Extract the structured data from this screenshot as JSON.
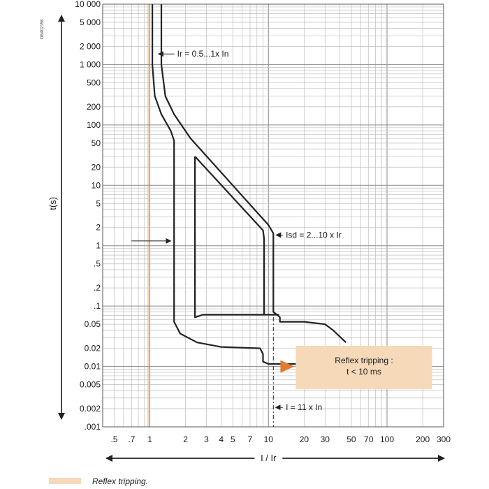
{
  "chart_data": {
    "type": "line",
    "title": "",
    "doc_code": "DB402158",
    "xlabel": "I / Ir",
    "ylabel": "t(s)",
    "x_scale": "log",
    "y_scale": "log",
    "xlim": [
      0.4,
      300
    ],
    "ylim": [
      0.001,
      10000
    ],
    "grid": true,
    "x_ticks": [
      {
        "v": 0.5,
        "label": ".5"
      },
      {
        "v": 0.7,
        "label": ".7"
      },
      {
        "v": 1,
        "label": "1"
      },
      {
        "v": 2,
        "label": "2"
      },
      {
        "v": 3,
        "label": "3"
      },
      {
        "v": 4,
        "label": "4"
      },
      {
        "v": 5,
        "label": "5"
      },
      {
        "v": 7,
        "label": "7"
      },
      {
        "v": 10,
        "label": "10"
      },
      {
        "v": 20,
        "label": "20"
      },
      {
        "v": 30,
        "label": "30"
      },
      {
        "v": 50,
        "label": "50"
      },
      {
        "v": 70,
        "label": "70"
      },
      {
        "v": 100,
        "label": "100"
      },
      {
        "v": 200,
        "label": "200"
      },
      {
        "v": 300,
        "label": "300"
      }
    ],
    "y_ticks": [
      {
        "v": 10000,
        "label": "10 000"
      },
      {
        "v": 5000,
        "label": "5 000"
      },
      {
        "v": 2000,
        "label": "2 000"
      },
      {
        "v": 1000,
        "label": "1 000"
      },
      {
        "v": 500,
        "label": "500"
      },
      {
        "v": 200,
        "label": "200"
      },
      {
        "v": 100,
        "label": "100"
      },
      {
        "v": 50,
        "label": "50"
      },
      {
        "v": 20,
        "label": "20"
      },
      {
        "v": 10,
        "label": "10"
      },
      {
        "v": 5,
        "label": "5"
      },
      {
        "v": 2,
        "label": "2"
      },
      {
        "v": 1,
        "label": "1"
      },
      {
        "v": 0.5,
        "label": ".5"
      },
      {
        "v": 0.2,
        "label": ".2"
      },
      {
        "v": 0.1,
        "label": ".1"
      },
      {
        "v": 0.05,
        "label": "0.05"
      },
      {
        "v": 0.02,
        "label": "0.02"
      },
      {
        "v": 0.01,
        "label": "0.01"
      },
      {
        "v": 0.005,
        "label": "0.005"
      },
      {
        "v": 0.002,
        "label": "0.002"
      },
      {
        "v": 0.001,
        "label": ".001"
      }
    ],
    "series": [
      {
        "color": "#222222",
        "points": [
          [
            1.05,
            10000
          ],
          [
            1.05,
            1000
          ],
          [
            1.1,
            300
          ],
          [
            1.25,
            150
          ],
          [
            1.5,
            80
          ],
          [
            1.6,
            55
          ],
          [
            1.6,
            0.055
          ],
          [
            1.8,
            0.035
          ],
          [
            2.5,
            0.025
          ],
          [
            4,
            0.021
          ],
          [
            8.5,
            0.02
          ],
          [
            9,
            0.016
          ],
          [
            9,
            0.012
          ],
          [
            10,
            0.011
          ],
          [
            30,
            0.011
          ]
        ]
      },
      {
        "color": "#222222",
        "points": [
          [
            1.25,
            10000
          ],
          [
            1.25,
            1000
          ],
          [
            1.35,
            300
          ],
          [
            1.6,
            150
          ],
          [
            2.2,
            60
          ],
          [
            5,
            10
          ],
          [
            10,
            2.2
          ],
          [
            11,
            1.6
          ],
          [
            11,
            0.08
          ],
          [
            12,
            0.07
          ],
          [
            12.5,
            0.065
          ],
          [
            12.5,
            0.055
          ],
          [
            20,
            0.055
          ],
          [
            30,
            0.05
          ],
          [
            35,
            0.04
          ],
          [
            45,
            0.025
          ]
        ]
      },
      {
        "color": "#222222",
        "points": [
          [
            2.4,
            30
          ],
          [
            2.4,
            0.065
          ],
          [
            2.8,
            0.072
          ],
          [
            12.3,
            0.072
          ]
        ]
      },
      {
        "color": "#222222",
        "points": [
          [
            2.4,
            30
          ],
          [
            9,
            1.8
          ],
          [
            9.2,
            1.3
          ],
          [
            9.2,
            0.072
          ]
        ]
      }
    ],
    "highlight_band": {
      "x": [
        0.95,
        1.0
      ],
      "color": "#f5d9b8",
      "label": "Reflex tripping."
    },
    "dash_line": {
      "x": 11,
      "y_from": 0.2,
      "y_to": 0.001
    },
    "annotations": [
      {
        "text": "Ir = 0.5...1x In",
        "x": 1.7,
        "y": 1500,
        "arrow_to_x": 1.15
      },
      {
        "text": "Isd = 2...10 x Ir",
        "x": 14,
        "y": 1.5,
        "arrow_to_x": 11.3
      },
      {
        "text": "I = 11 x In",
        "x": 14,
        "y": 0.0021,
        "arrow_to_x": 11.2
      }
    ],
    "callout": {
      "lines": [
        "Reflex tripping :",
        "t < 10 ms"
      ],
      "color": "#f5d9b8",
      "arrow_color": "#e07b2f",
      "x_from": 17,
      "x_to": 240,
      "y_top": 0.022,
      "y_bottom": 0.0042,
      "arrow_y": 0.01
    },
    "extra_arrow": {
      "x_from": 0.7,
      "x_to": 1.5,
      "y": 1.2
    }
  }
}
